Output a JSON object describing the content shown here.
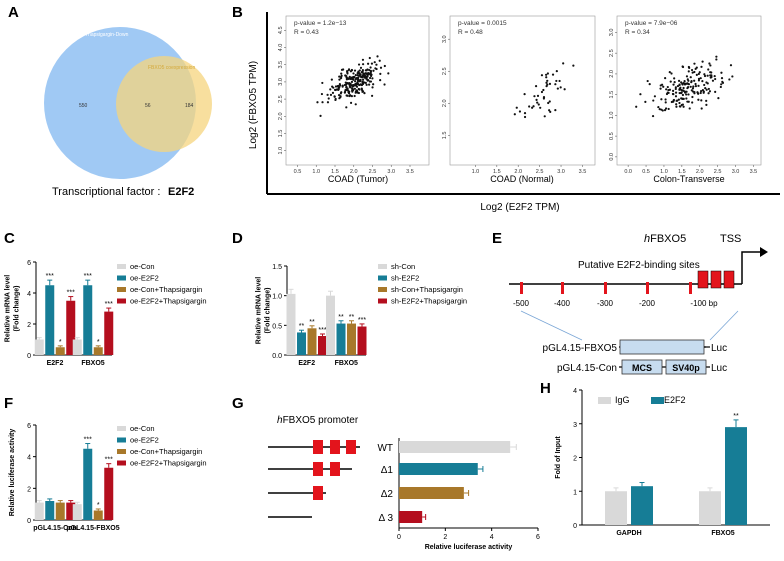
{
  "colors": {
    "gray": "#d9d9d9",
    "teal": "#167d96",
    "brown": "#a8782a",
    "red": "#b40e1e",
    "venn_blue": "#8fc0f2",
    "venn_yellow": "#f5d47e",
    "box_blue": "#c7dcef",
    "tss_red": "#e3141c"
  },
  "panels": {
    "a": "A",
    "b": "B",
    "c": "C",
    "d": "D",
    "e": "E",
    "f": "F",
    "g": "G",
    "h": "H"
  },
  "venn": {
    "left_label": "Thapsigargin-Down",
    "right_label": "FBXO5 coexpression",
    "left_only": "550",
    "overlap": "56",
    "right_only": "184",
    "tf_label": "Transcriptional factor :",
    "tf_name": "E2F2"
  },
  "scatter": {
    "ylabel": "Log2 (FBXO5 TPM)",
    "xlabel": "Log2 (E2F2 TPM)",
    "plots": [
      {
        "title": "COAD (Tumor)",
        "pvalue": "p-value = 1.2e−13",
        "r": "R = 0.43",
        "xticks": [
          "0.5",
          "1.0",
          "1.5",
          "2.0",
          "2.5",
          "3.0",
          "3.5"
        ],
        "yticks": [
          "1.0",
          "1.5",
          "2.0",
          "2.5",
          "3.0",
          "3.5",
          "4.0",
          "4.5"
        ]
      },
      {
        "title": "COAD (Normal)",
        "pvalue": "p-value = 0.0015",
        "r": "R = 0.48",
        "xticks": [
          "1.0",
          "1.5",
          "2.0",
          "2.5",
          "3.0",
          "3.5"
        ],
        "yticks": [
          "1.5",
          "2.0",
          "2.5",
          "3.0"
        ]
      },
      {
        "title": "Colon-Transverse",
        "pvalue": "p-value = 7.9e−06",
        "r": "R = 0.34",
        "xticks": [
          "0.0",
          "0.5",
          "1.0",
          "1.5",
          "2.0",
          "2.5",
          "3.0",
          "3.5"
        ],
        "yticks": [
          "0.0",
          "0.5",
          "1.0",
          "1.5",
          "2.0",
          "2.5",
          "3.0"
        ]
      }
    ]
  },
  "chart_data": [
    {
      "type": "bar",
      "panel": "C",
      "ylabel": "Relative mRNA level\n(Fold change)",
      "categories": [
        "E2F2",
        "FBXO5"
      ],
      "ylim": [
        0,
        6
      ],
      "yticks": [
        "0",
        "2",
        "4",
        "6"
      ],
      "series": [
        {
          "name": "oe-Con",
          "values": [
            1.0,
            1.0
          ]
        },
        {
          "name": "oe-E2F2",
          "values": [
            4.5,
            4.5
          ]
        },
        {
          "name": "oe-Con+Thapsigargin",
          "values": [
            0.5,
            0.5
          ]
        },
        {
          "name": "oe-E2F2+Thapsigargin",
          "values": [
            3.5,
            2.8
          ]
        }
      ],
      "annotations": [
        "",
        "***",
        "*",
        "***",
        "",
        "***",
        "*",
        "***"
      ]
    },
    {
      "type": "bar",
      "panel": "D",
      "ylabel": "Relative mRNA level\n(Fold change)",
      "categories": [
        "E2F2",
        "FBXO5"
      ],
      "ylim": [
        0,
        1.5
      ],
      "yticks": [
        "0.0",
        "0.5",
        "1.0",
        "1.5"
      ],
      "series": [
        {
          "name": "sh-Con",
          "values": [
            1.03,
            1.0
          ]
        },
        {
          "name": "sh-E2F2",
          "values": [
            0.38,
            0.53
          ]
        },
        {
          "name": "sh-Con+Thapsigargin",
          "values": [
            0.45,
            0.53
          ]
        },
        {
          "name": "sh-E2F2+Thapsigargin",
          "values": [
            0.32,
            0.48
          ]
        }
      ],
      "annotations": [
        "",
        "**",
        "**",
        "***",
        "",
        "**",
        "**",
        "***"
      ]
    },
    {
      "type": "bar",
      "panel": "F",
      "ylabel": "Relative luciferase activity",
      "categories": [
        "pGL4.15-Con",
        "pGL4.15-FBXO5"
      ],
      "ylim": [
        0,
        6
      ],
      "yticks": [
        "0",
        "2",
        "4",
        "6"
      ],
      "series": [
        {
          "name": "oe-Con",
          "values": [
            1.1,
            1.0
          ]
        },
        {
          "name": "oe-E2F2",
          "values": [
            1.2,
            4.5
          ]
        },
        {
          "name": "oe-Con+Thapsigargin",
          "values": [
            1.1,
            0.6
          ]
        },
        {
          "name": "oe-E2F2+Thapsigargin",
          "values": [
            1.1,
            3.3
          ]
        }
      ],
      "annotations": [
        "",
        "",
        "",
        "",
        "",
        "***",
        "*",
        "***"
      ]
    },
    {
      "type": "bar",
      "panel": "G",
      "orientation": "horizontal",
      "xlabel": "Relative luciferase activity",
      "categories": [
        "WT",
        "Δ1",
        "Δ2",
        "Δ 3"
      ],
      "values": [
        4.8,
        3.4,
        2.8,
        1.0
      ],
      "xlim": [
        0,
        6
      ],
      "xticks": [
        "0",
        "2",
        "4",
        "6"
      ]
    },
    {
      "type": "bar",
      "panel": "H",
      "ylabel": "Fold of Input",
      "categories": [
        "GAPDH",
        "FBXO5"
      ],
      "ylim": [
        0,
        4
      ],
      "yticks": [
        "0",
        "1",
        "2",
        "3",
        "4"
      ],
      "series": [
        {
          "name": "IgG",
          "values": [
            1.0,
            1.0
          ]
        },
        {
          "name": "E2F2",
          "values": [
            1.15,
            2.9
          ]
        }
      ],
      "annotations": [
        "",
        "",
        "",
        "**"
      ]
    }
  ],
  "promoter_map": {
    "title_italic": "h",
    "title": "FBXO5",
    "tss": "TSS",
    "sites_label": "Putative E2F2-binding sites",
    "scale": [
      "-500",
      "-400",
      "-300",
      "-200",
      "-100 bp"
    ],
    "construct1": "pGL4.15-FBXO5",
    "construct2": "pGL4.15-Con",
    "mcs": "MCS",
    "sv40p": "SV40p",
    "luc": "Luc"
  },
  "g_panel": {
    "title_italic": "h",
    "title": "FBXO5 promoter"
  }
}
